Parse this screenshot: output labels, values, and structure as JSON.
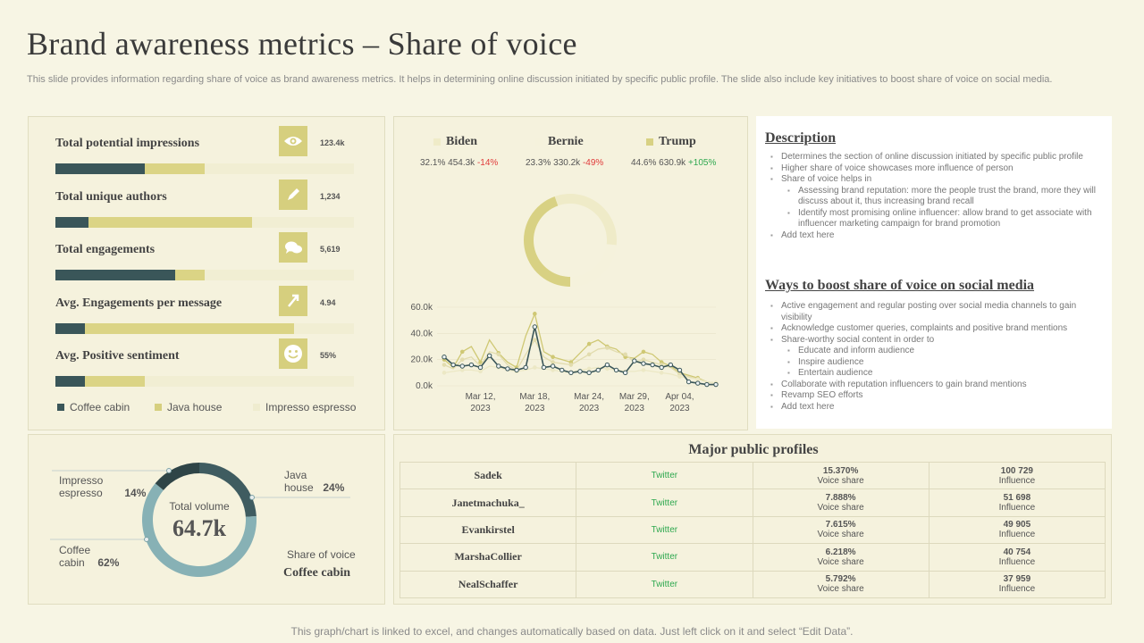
{
  "title": "Brand awareness metrics – Share of voice",
  "subtitle": "This slide provides information regarding share of voice as brand awareness metrics. It helps in determining online discussion initiated by specific public profile. The slide also include key initiatives to boost share of voice on social media.",
  "footer": "This graph/chart is linked to excel, and changes automatically based on data. Just left click on it and select “Edit Data”.",
  "colors": {
    "coffee": "#3a5659",
    "java": "#dbd485",
    "espresso": "#f1eed3",
    "donut_coffee": "#87b1b5",
    "donut_java": "#3f5c60",
    "donut_espresso": "#2f4547"
  },
  "metrics": [
    {
      "label": "Total potential impressions",
      "value": "123.4k",
      "icon": "eye-icon",
      "coffee": 0.3,
      "java": 0.2
    },
    {
      "label": "Total unique authors",
      "value": "1,234",
      "icon": "pen-icon",
      "coffee": 0.11,
      "java": 0.55
    },
    {
      "label": "Total engagements",
      "value": "5,619",
      "icon": "chat-icon",
      "coffee": 0.4,
      "java": 0.1
    },
    {
      "label": "Avg. Engagements  per message",
      "value": "4.94",
      "icon": "cursor-icon",
      "coffee": 0.1,
      "java": 0.7
    },
    {
      "label": "Avg. Positive sentiment",
      "value": "55%",
      "icon": "smiley-icon",
      "coffee": 0.1,
      "java": 0.2
    }
  ],
  "legend": [
    "Coffee cabin",
    "Java house",
    "Impresso espresso"
  ],
  "candidates": [
    {
      "name": "Biden",
      "share": "32.1%",
      "count": "454.3k",
      "change": "-14%",
      "dir": "neg",
      "color": "#efebc8"
    },
    {
      "name": "Bernie",
      "share": "23.3%",
      "count": "330.2k",
      "change": "-49%",
      "dir": "neg",
      "color": "#f5f2dc"
    },
    {
      "name": "Trump",
      "share": "44.6%",
      "count": "630.9k",
      "change": "+105%",
      "dir": "pos",
      "color": "#d8d183"
    }
  ],
  "description": {
    "heading": "Description",
    "items": [
      {
        "text": "Determines the section of online discussion initiated by specific public profile",
        "sub": false
      },
      {
        "text": "Higher share of voice showcases more influence of person",
        "sub": false
      },
      {
        "text": "Share of voice helps in",
        "sub": false
      },
      {
        "text": "Assessing brand reputation: more the people trust the brand, more they will discuss about it, thus increasing brand recall",
        "sub": true
      },
      {
        "text": "Identify most promising online influencer: allow brand to get associate with influencer marketing campaign  for brand promotion",
        "sub": true
      },
      {
        "text": "Add text here",
        "sub": false
      }
    ]
  },
  "ways": {
    "heading": "Ways to boost share of voice on social media",
    "items": [
      {
        "text": "Active engagement and regular posting over social media channels to gain visibility",
        "sub": false
      },
      {
        "text": "Acknowledge customer queries, complaints and positive brand mentions",
        "sub": false
      },
      {
        "text": "Share-worthy social content in order to",
        "sub": false
      },
      {
        "text": "Educate and inform audience",
        "sub": true
      },
      {
        "text": "Inspire audience",
        "sub": true
      },
      {
        "text": "Entertain audience",
        "sub": true
      },
      {
        "text": "Collaborate  with reputation influencers to gain brand mentions",
        "sub": false
      },
      {
        "text": "Revamp SEO  efforts",
        "sub": false
      },
      {
        "text": "Add text here",
        "sub": false
      }
    ]
  },
  "profiles": {
    "heading": "Major public profiles",
    "rows": [
      {
        "name": "Sadek",
        "platform": "Twitter",
        "share": "15.370%",
        "share_label": "Voice share",
        "influence": "100 729",
        "influence_label": "Influence"
      },
      {
        "name": "Janetmachuka_",
        "platform": "Twitter",
        "share": "7.888%",
        "share_label": "Voice share",
        "influence": "51 698",
        "influence_label": "Influence"
      },
      {
        "name": "Evankirstel",
        "platform": "Twitter",
        "share": "7.615%",
        "share_label": "Voice share",
        "influence": "49 905",
        "influence_label": "Influence"
      },
      {
        "name": "MarshaCollier",
        "platform": "Twitter",
        "share": "6.218%",
        "share_label": "Voice share",
        "influence": "40 754",
        "influence_label": "Influence"
      },
      {
        "name": "NealSchaffer",
        "platform": "Twitter",
        "share": "5.792%",
        "share_label": "Voice share",
        "influence": "37 959",
        "influence_label": "Influence"
      }
    ]
  },
  "volume": {
    "caption": "Total volume",
    "value": "64.7k",
    "share_caption": "Share of voice",
    "share_brand": "Coffee cabin",
    "labels": {
      "espresso_name": "Impresso espresso",
      "espresso_pct": "14%",
      "java_name": "Java house",
      "java_pct": "24%",
      "coffee_name": "Coffee cabin",
      "coffee_pct": "62%"
    }
  },
  "chart_data": [
    {
      "type": "pie",
      "title": "",
      "labels": [
        "Biden",
        "Bernie",
        "Trump"
      ],
      "values": [
        32.1,
        23.3,
        44.6
      ]
    },
    {
      "type": "line",
      "ylim": [
        0,
        60000
      ],
      "y_ticks": [
        "0.0k",
        "20.0k",
        "40.0k",
        "60.0k"
      ],
      "x_ticks": [
        {
          "line1": "Mar 12,",
          "line2": "2023",
          "x": 4
        },
        {
          "line1": "Mar 18,",
          "line2": "2023",
          "x": 10
        },
        {
          "line1": "Mar 24,",
          "line2": "2023",
          "x": 16
        },
        {
          "line1": "Mar 29,",
          "line2": "2023",
          "x": 21
        },
        {
          "line1": "Apr 04,",
          "line2": "2023",
          "x": 26
        }
      ],
      "x": [
        0,
        1,
        2,
        3,
        4,
        5,
        6,
        7,
        8,
        9,
        10,
        11,
        12,
        13,
        14,
        15,
        16,
        17,
        18,
        19,
        20,
        21,
        22,
        23,
        24,
        25,
        26,
        27,
        28,
        29,
        30
      ],
      "series": [
        {
          "name": "Trump",
          "color": "#cfc874",
          "values": [
            20000,
            14000,
            26000,
            30000,
            18000,
            35000,
            25000,
            18000,
            14000,
            38000,
            55000,
            26000,
            22000,
            20000,
            18000,
            25000,
            32000,
            35000,
            30000,
            28000,
            22000,
            21000,
            26000,
            24000,
            18000,
            15000,
            10000,
            8000,
            6000,
            3000,
            2000
          ]
        },
        {
          "name": "Biden",
          "color": "#e2dcae",
          "values": [
            16000,
            13000,
            20000,
            22000,
            15000,
            26000,
            24000,
            16000,
            12000,
            24000,
            35000,
            22000,
            18000,
            17000,
            16000,
            20000,
            24000,
            28000,
            29000,
            26000,
            24000,
            18000,
            20000,
            18000,
            16000,
            14000,
            9000,
            7000,
            5000,
            3000,
            2000
          ]
        },
        {
          "name": "Bernie",
          "color": "#ece8c5",
          "values": [
            10000,
            11000,
            12000,
            12000,
            11000,
            15000,
            14000,
            12000,
            11000,
            12000,
            14000,
            13000,
            12000,
            11000,
            10000,
            12000,
            13000,
            14000,
            13000,
            12000,
            11000,
            11000,
            12000,
            11000,
            10000,
            9000,
            7000,
            6000,
            5000,
            3000,
            2000
          ]
        },
        {
          "name": "Coffee cabin",
          "color": "#3a5659",
          "values": [
            22000,
            16000,
            15000,
            16000,
            14000,
            23000,
            15000,
            13000,
            12000,
            14000,
            45000,
            14000,
            15000,
            12000,
            10000,
            11000,
            10000,
            12000,
            16000,
            12000,
            10000,
            19000,
            17000,
            16000,
            14000,
            16000,
            12000,
            3000,
            2000,
            1000,
            1000
          ]
        }
      ]
    },
    {
      "type": "pie",
      "labels": [
        "Coffee cabin",
        "Java house",
        "Impresso espresso"
      ],
      "values": [
        62,
        24,
        14
      ]
    }
  ]
}
